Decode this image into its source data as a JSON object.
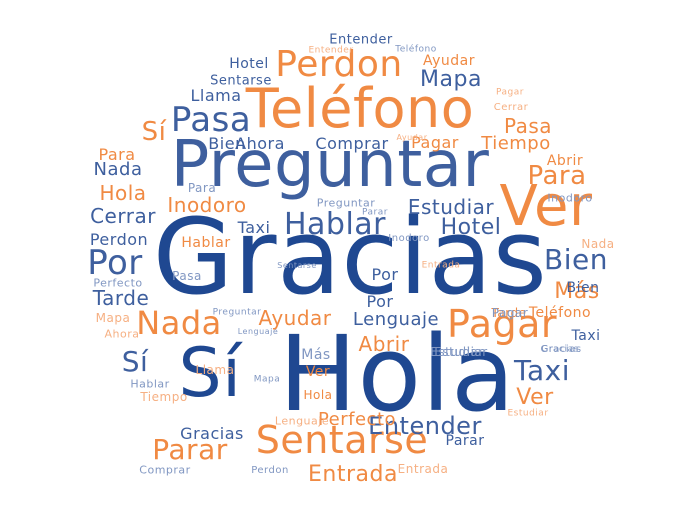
{
  "colors": {
    "dark_blue": "#1f4891",
    "mid_blue": "#3e5f9e",
    "light_blue": "#8197c2",
    "orange": "#f08a43",
    "light_orange": "#f6b083"
  },
  "words": [
    {
      "text": "Gracias",
      "color": "dark_blue"
    },
    {
      "text": "Hola",
      "color": "dark_blue"
    },
    {
      "text": "Sí",
      "color": "dark_blue"
    },
    {
      "text": "Preguntar",
      "color": "mid_blue"
    },
    {
      "text": "Teléfono",
      "color": "orange"
    },
    {
      "text": "Ver",
      "color": "orange"
    },
    {
      "text": "Sentarse",
      "color": "orange"
    },
    {
      "text": "Pagar",
      "color": "orange"
    },
    {
      "text": "Perdon",
      "color": "orange"
    },
    {
      "text": "Pasa",
      "color": "mid_blue"
    },
    {
      "text": "Hablar",
      "color": "mid_blue"
    },
    {
      "text": "Por",
      "color": "mid_blue"
    },
    {
      "text": "Nada",
      "color": "orange"
    },
    {
      "text": "Bien",
      "color": "mid_blue"
    },
    {
      "text": "Taxi",
      "color": "mid_blue"
    },
    {
      "text": "Parar",
      "color": "orange"
    },
    {
      "text": "Entender",
      "color": "mid_blue"
    },
    {
      "text": "Para",
      "color": "orange"
    },
    {
      "text": "Sí",
      "color": "orange"
    },
    {
      "text": "Sí",
      "color": "mid_blue"
    },
    {
      "text": "Mapa",
      "color": "mid_blue"
    },
    {
      "text": "Hotel",
      "color": "mid_blue"
    },
    {
      "text": "Estudiar",
      "color": "mid_blue"
    },
    {
      "text": "Inodoro",
      "color": "orange"
    },
    {
      "text": "Cerrar",
      "color": "mid_blue"
    },
    {
      "text": "Hola",
      "color": "orange"
    },
    {
      "text": "Nada",
      "color": "mid_blue"
    },
    {
      "text": "Tarde",
      "color": "mid_blue"
    },
    {
      "text": "Más",
      "color": "orange"
    },
    {
      "text": "Abrir",
      "color": "orange"
    },
    {
      "text": "Ayudar",
      "color": "orange"
    },
    {
      "text": "Lenguaje",
      "color": "mid_blue"
    },
    {
      "text": "Entrada",
      "color": "orange"
    },
    {
      "text": "Perfecto",
      "color": "orange"
    },
    {
      "text": "Gracias",
      "color": "mid_blue"
    },
    {
      "text": "Ver",
      "color": "orange"
    },
    {
      "text": "Pasa",
      "color": "orange"
    },
    {
      "text": "Tiempo",
      "color": "orange"
    },
    {
      "text": "Comprar",
      "color": "mid_blue"
    },
    {
      "text": "Pagar",
      "color": "orange"
    },
    {
      "text": "Ahora",
      "color": "mid_blue"
    },
    {
      "text": "Bien",
      "color": "mid_blue"
    },
    {
      "text": "Llama",
      "color": "mid_blue"
    },
    {
      "text": "Hotel",
      "color": "mid_blue"
    },
    {
      "text": "Sentarse",
      "color": "mid_blue"
    },
    {
      "text": "Ayudar",
      "color": "orange"
    },
    {
      "text": "Entender",
      "color": "mid_blue"
    },
    {
      "text": "Entender",
      "color": "light_orange"
    },
    {
      "text": "Teléfono",
      "color": "light_blue"
    },
    {
      "text": "Perdon",
      "color": "mid_blue"
    },
    {
      "text": "Hablar",
      "color": "orange"
    },
    {
      "text": "Taxi",
      "color": "mid_blue"
    },
    {
      "text": "Para",
      "color": "light_blue"
    },
    {
      "text": "Por",
      "color": "mid_blue"
    },
    {
      "text": "Pasa",
      "color": "light_blue"
    },
    {
      "text": "Perfecto",
      "color": "light_blue"
    },
    {
      "text": "Mapa",
      "color": "light_orange"
    },
    {
      "text": "Ahora",
      "color": "light_orange"
    },
    {
      "text": "Hablar",
      "color": "light_blue"
    },
    {
      "text": "Tiempo",
      "color": "light_orange"
    },
    {
      "text": "Comprar",
      "color": "light_blue"
    },
    {
      "text": "Perdon",
      "color": "light_blue"
    },
    {
      "text": "Entrada",
      "color": "light_orange"
    },
    {
      "text": "Parar",
      "color": "mid_blue"
    },
    {
      "text": "Estudiar",
      "color": "light_blue"
    },
    {
      "text": "Estudiar",
      "color": "light_orange"
    },
    {
      "text": "Gracias",
      "color": "light_blue"
    },
    {
      "text": "Taxi",
      "color": "mid_blue"
    },
    {
      "text": "Teléfono",
      "color": "orange"
    },
    {
      "text": "Tarde",
      "color": "orange"
    },
    {
      "text": "Nada",
      "color": "light_orange"
    },
    {
      "text": "Bien",
      "color": "mid_blue"
    },
    {
      "text": "Abrir",
      "color": "orange"
    },
    {
      "text": "Inodoro",
      "color": "light_blue"
    },
    {
      "text": "Para",
      "color": "orange"
    },
    {
      "text": "Pagar",
      "color": "light_orange"
    },
    {
      "text": "Cerrar",
      "color": "light_orange"
    },
    {
      "text": "Ayudar",
      "color": "light_orange"
    },
    {
      "text": "Preguntar",
      "color": "light_blue"
    },
    {
      "text": "Parar",
      "color": "light_blue"
    },
    {
      "text": "Inodoro",
      "color": "light_blue"
    },
    {
      "text": "Entrada",
      "color": "light_orange"
    },
    {
      "text": "Sentarse",
      "color": "light_blue"
    },
    {
      "text": "Por",
      "color": "mid_blue"
    },
    {
      "text": "Preguntar",
      "color": "light_blue"
    },
    {
      "text": "Lenguaje",
      "color": "light_blue"
    },
    {
      "text": "Llama",
      "color": "light_orange"
    },
    {
      "text": "Mapa",
      "color": "light_blue"
    },
    {
      "text": "Más",
      "color": "light_blue"
    },
    {
      "text": "Ver",
      "color": "orange"
    },
    {
      "text": "Hola",
      "color": "orange"
    },
    {
      "text": "Lenguaje",
      "color": "light_orange"
    },
    {
      "text": "Estudiar",
      "color": "light_blue"
    },
    {
      "text": "Gracias",
      "color": "light_blue"
    },
    {
      "text": "Pagar",
      "color": "light_blue"
    }
  ]
}
